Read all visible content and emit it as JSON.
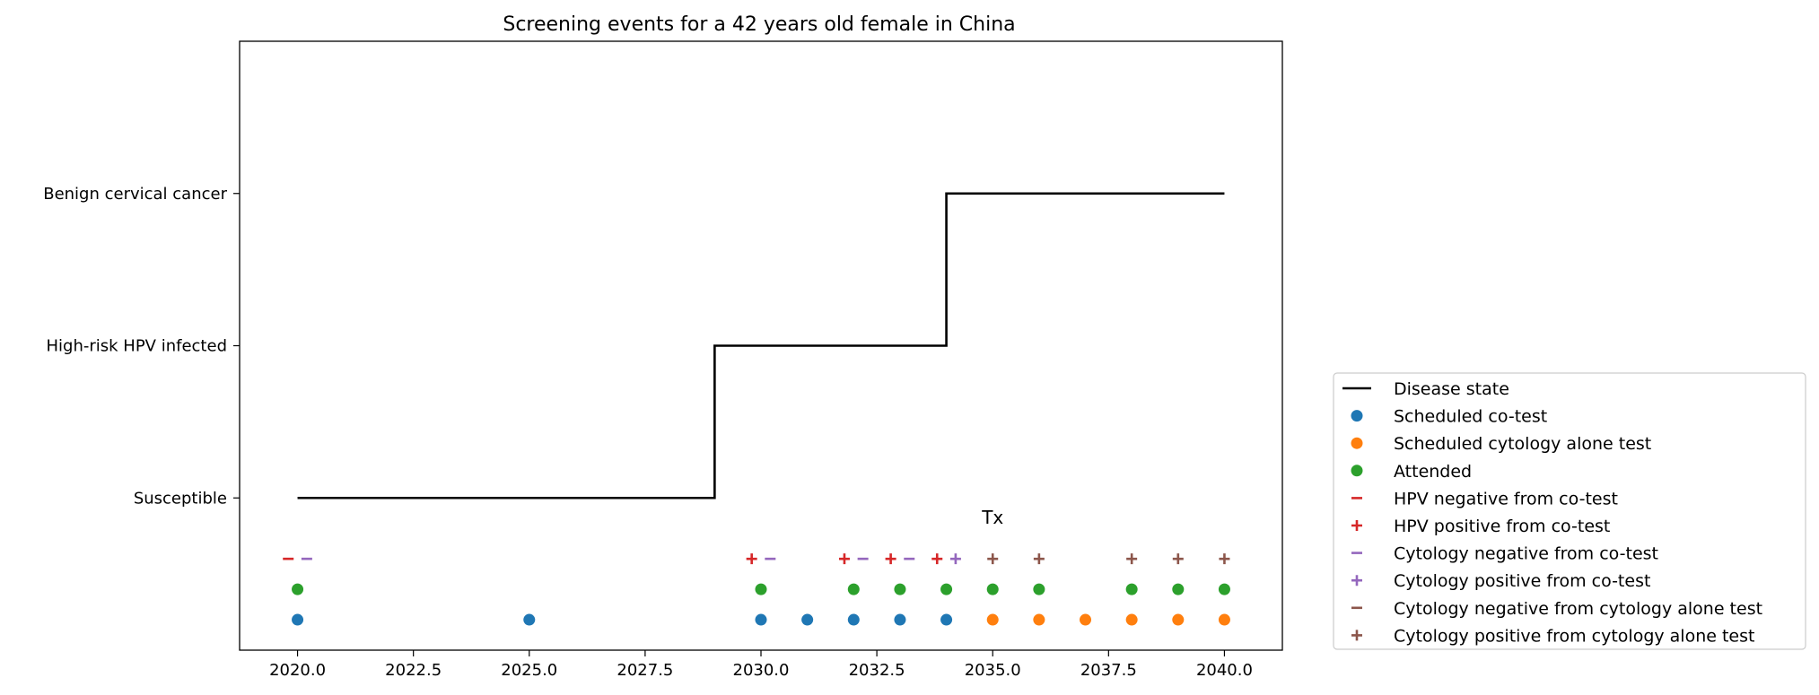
{
  "chart_data": {
    "type": "line",
    "title": "Screening events for a 42 years old female in China",
    "xlabel": "",
    "ylabel": "",
    "xlim": [
      2018.75,
      2041.25
    ],
    "ylim": [
      -1.0,
      3.0
    ],
    "x_ticks": [
      2020.0,
      2022.5,
      2025.0,
      2027.5,
      2030.0,
      2032.5,
      2035.0,
      2037.5,
      2040.0
    ],
    "x_tick_labels": [
      "2020.0",
      "2022.5",
      "2025.0",
      "2027.5",
      "2030.0",
      "2032.5",
      "2035.0",
      "2037.5",
      "2040.0"
    ],
    "y_ticks": [
      0,
      1,
      2
    ],
    "y_tick_labels": [
      "Susceptible",
      "High-risk HPV infected",
      "Benign cervical cancer"
    ],
    "grid": false,
    "legend_position": "outside-right",
    "annotations": [
      {
        "text": "Tx",
        "x": 35.0,
        "y": -0.17
      }
    ],
    "series": [
      {
        "name": "Disease state",
        "kind": "step",
        "color": "#000000",
        "x": [
          2020,
          2029,
          2029,
          2034,
          2034,
          2040
        ],
        "y": [
          0,
          0,
          1,
          1,
          2,
          2
        ]
      },
      {
        "name": "Scheduled co-test",
        "kind": "scatter",
        "marker": "circle",
        "color": "#1f77b4",
        "y": -0.8,
        "x": [
          2020,
          2025,
          2030,
          2031,
          2032,
          2033,
          2034
        ]
      },
      {
        "name": "Scheduled cytology alone test",
        "kind": "scatter",
        "marker": "circle",
        "color": "#ff7f0e",
        "y": -0.8,
        "x": [
          2035,
          2036,
          2037,
          2038,
          2039,
          2040
        ]
      },
      {
        "name": "Attended",
        "kind": "scatter",
        "marker": "circle",
        "color": "#2ca02c",
        "y": -0.6,
        "x": [
          2020,
          2030,
          2032,
          2033,
          2034,
          2035,
          2036,
          2038,
          2039,
          2040
        ]
      },
      {
        "name": "HPV negative from co-test",
        "kind": "scatter",
        "marker": "minus",
        "color": "#d62728",
        "y": -0.4,
        "x": [
          2019.8
        ]
      },
      {
        "name": "HPV positive from co-test",
        "kind": "scatter",
        "marker": "plus",
        "color": "#d62728",
        "y": -0.4,
        "x": [
          2029.8,
          2031.8,
          2032.8,
          2033.8
        ]
      },
      {
        "name": "Cytology negative from co-test",
        "kind": "scatter",
        "marker": "minus",
        "color": "#9467bd",
        "y": -0.4,
        "x": [
          2020.2,
          2030.2,
          2032.2,
          2033.2
        ]
      },
      {
        "name": "Cytology positive from co-test",
        "kind": "scatter",
        "marker": "plus",
        "color": "#9467bd",
        "y": -0.4,
        "x": [
          2034.2
        ]
      },
      {
        "name": "Cytology negative from cytology alone test",
        "kind": "scatter",
        "marker": "minus",
        "color": "#8c564b",
        "y": -0.4,
        "x": []
      },
      {
        "name": "Cytology positive from cytology alone test",
        "kind": "scatter",
        "marker": "plus",
        "color": "#8c564b",
        "y": -0.4,
        "x": [
          2035,
          2036,
          2038,
          2039,
          2040
        ]
      }
    ]
  }
}
